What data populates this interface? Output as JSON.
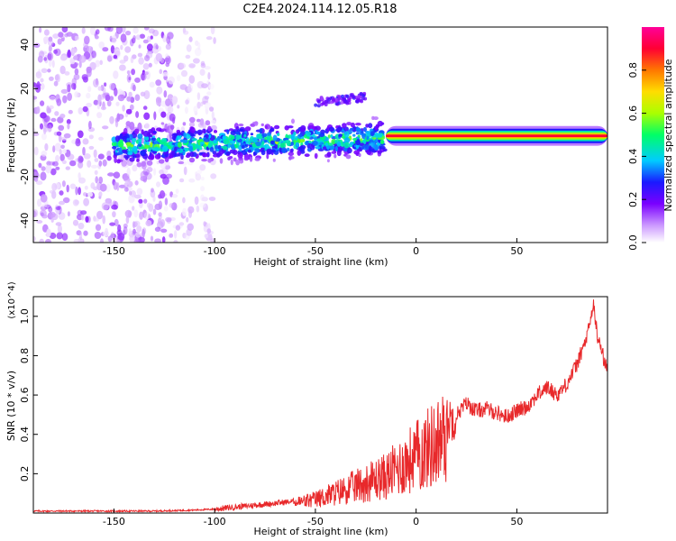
{
  "page_title": "C2E4.2024.114.12.05.R18",
  "chart_data": [
    {
      "type": "heatmap",
      "xlabel": "Height of straight line (km)",
      "ylabel": "Frequency (Hz)",
      "xlim": [
        -190,
        95
      ],
      "ylim": [
        -50,
        48
      ],
      "xticks": [
        -150,
        -100,
        -50,
        0,
        50
      ],
      "yticks": [
        -40,
        -20,
        0,
        20,
        40
      ],
      "colorbar": {
        "label": "Normalized spectral amplitude",
        "range": [
          0,
          1
        ],
        "ticks": [
          0.0,
          0.2,
          0.4,
          0.6,
          0.8
        ],
        "tick_labels": [
          "0.0",
          "0.2",
          "0.4",
          "0.6",
          "0.8"
        ],
        "colormap": [
          "#ffffff",
          "#cc99ff",
          "#7a00ff",
          "#1a1aff",
          "#00ccff",
          "#00ff66",
          "#aaff00",
          "#ffdd00",
          "#ff7700",
          "#ff0033",
          "#ff0099"
        ]
      },
      "features": [
        {
          "region": "noise_scatter",
          "x_range": [
            -190,
            -120
          ],
          "freq_range": [
            -50,
            48
          ],
          "amplitude": 0.1
        },
        {
          "region": "sparse_scatter",
          "x_range": [
            -120,
            -100
          ],
          "freq_range": [
            -50,
            48
          ],
          "amplitude": 0.05
        },
        {
          "region": "signal_band",
          "x_range": [
            -150,
            -15
          ],
          "center_freq": -3,
          "freq_halfwidth": 6,
          "amplitude": 0.35
        },
        {
          "region": "upper_branch",
          "x_range": [
            -50,
            -25
          ],
          "center_freq": 14,
          "freq_halfwidth": 2,
          "amplitude": 0.15
        },
        {
          "region": "narrow_line",
          "x_range": [
            -15,
            95
          ],
          "center_freq": -1.5,
          "freq_halfwidth": 1.5,
          "amplitude": 0.9
        }
      ]
    },
    {
      "type": "line",
      "xlabel": "Height of straight line (km)",
      "ylabel": "SNR (10 * v/v)",
      "y_multiplier": "(x10^4)",
      "xlim": [
        -190,
        95
      ],
      "ylim": [
        0,
        1.1
      ],
      "xticks": [
        -150,
        -100,
        -50,
        0,
        50
      ],
      "yticks": [
        0.2,
        0.4,
        0.6,
        0.8,
        1.0
      ],
      "series": [
        {
          "color": "#e8292b",
          "x": [
            -190,
            -170,
            -150,
            -130,
            -110,
            -100,
            -90,
            -80,
            -70,
            -60,
            -50,
            -45,
            -40,
            -35,
            -30,
            -25,
            -20,
            -15,
            -10,
            -5,
            0,
            5,
            10,
            15,
            20,
            25,
            27,
            30,
            35,
            40,
            45,
            50,
            55,
            60,
            65,
            70,
            75,
            80,
            85,
            88,
            90,
            95
          ],
          "y": [
            0.01,
            0.01,
            0.01,
            0.01,
            0.015,
            0.02,
            0.03,
            0.04,
            0.05,
            0.06,
            0.08,
            0.1,
            0.12,
            0.14,
            0.16,
            0.18,
            0.2,
            0.22,
            0.26,
            0.3,
            0.34,
            0.38,
            0.42,
            0.46,
            0.5,
            0.56,
            0.54,
            0.52,
            0.53,
            0.51,
            0.49,
            0.52,
            0.54,
            0.6,
            0.64,
            0.6,
            0.66,
            0.76,
            0.9,
            1.06,
            0.9,
            0.72
          ]
        }
      ]
    }
  ]
}
